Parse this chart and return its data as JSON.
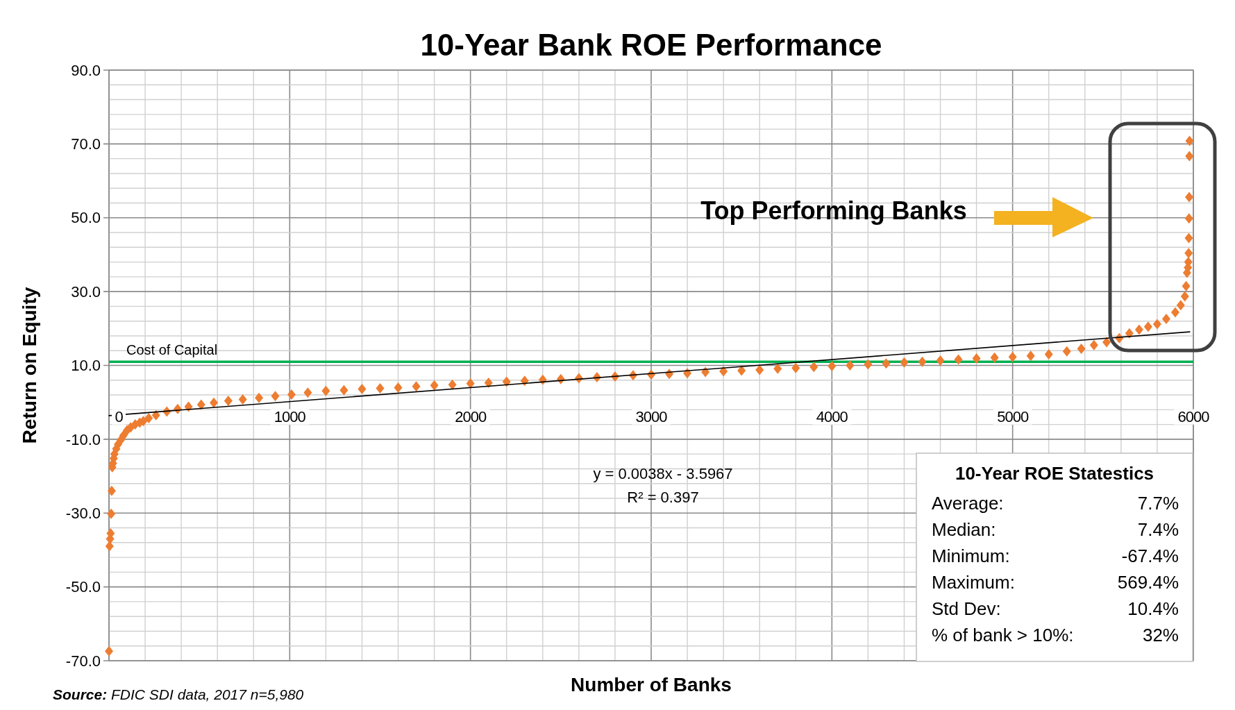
{
  "chart_data": {
    "type": "scatter",
    "title": "10-Year Bank ROE Performance",
    "xlabel": "Number of Banks",
    "ylabel": "Return on Equity",
    "xlim": [
      0,
      6000
    ],
    "ylim": [
      -70,
      90
    ],
    "xticks": [
      0,
      {
        "value": 200,
        "label": null
      },
      {
        "value": 400,
        "label": null
      },
      {
        "value": 600,
        "label": null
      },
      {
        "value": 800,
        "label": null
      },
      1000,
      {
        "value": 1200,
        "label": null
      },
      {
        "value": 1400,
        "label": null
      },
      {
        "value": 1600,
        "label": null
      },
      {
        "value": 1800,
        "label": null
      },
      2000,
      {
        "value": 2200,
        "label": null
      },
      {
        "value": 2400,
        "label": null
      },
      {
        "value": 2600,
        "label": null
      },
      {
        "value": 2800,
        "label": null
      },
      3000,
      {
        "value": 3200,
        "label": null
      },
      {
        "value": 3400,
        "label": null
      },
      {
        "value": 3600,
        "label": null
      },
      {
        "value": 3800,
        "label": null
      },
      4000,
      {
        "value": 4200,
        "label": null
      },
      {
        "value": 4400,
        "label": null
      },
      {
        "value": 4600,
        "label": null
      },
      {
        "value": 4800,
        "label": null
      },
      5000,
      {
        "value": 5200,
        "label": null
      },
      {
        "value": 5400,
        "label": null
      },
      {
        "value": 5600,
        "label": null
      },
      {
        "value": 5800,
        "label": null
      },
      6000
    ],
    "yticks": [
      {
        "value": -70,
        "label": "-70.0"
      },
      {
        "value": -66,
        "label": null
      },
      {
        "value": -62,
        "label": null
      },
      {
        "value": -58,
        "label": null
      },
      {
        "value": -54,
        "label": null
      },
      {
        "value": -50,
        "label": "-50.0"
      },
      {
        "value": -46,
        "label": null
      },
      {
        "value": -42,
        "label": null
      },
      {
        "value": -38,
        "label": null
      },
      {
        "value": -34,
        "label": null
      },
      {
        "value": -30,
        "label": "-30.0"
      },
      {
        "value": -26,
        "label": null
      },
      {
        "value": -22,
        "label": null
      },
      {
        "value": -18,
        "label": null
      },
      {
        "value": -14,
        "label": null
      },
      {
        "value": -10,
        "label": "-10.0"
      },
      {
        "value": -6,
        "label": null
      },
      {
        "value": -2,
        "label": null
      },
      {
        "value": 2,
        "label": null
      },
      {
        "value": 6,
        "label": null
      },
      {
        "value": 10,
        "label": "10.0"
      },
      {
        "value": 14,
        "label": null
      },
      {
        "value": 18,
        "label": null
      },
      {
        "value": 22,
        "label": null
      },
      {
        "value": 26,
        "label": null
      },
      {
        "value": 30,
        "label": "30.0"
      },
      {
        "value": 34,
        "label": null
      },
      {
        "value": 38,
        "label": null
      },
      {
        "value": 42,
        "label": null
      },
      {
        "value": 46,
        "label": null
      },
      {
        "value": 50,
        "label": "50.0"
      },
      {
        "value": 54,
        "label": null
      },
      {
        "value": 58,
        "label": null
      },
      {
        "value": 62,
        "label": null
      },
      {
        "value": 66,
        "label": null
      },
      {
        "value": 70,
        "label": "70.0"
      },
      {
        "value": 74,
        "label": null
      },
      {
        "value": 78,
        "label": null
      },
      {
        "value": 82,
        "label": null
      },
      {
        "value": 86,
        "label": null
      },
      {
        "value": 90,
        "label": "90.0"
      }
    ],
    "grid": true,
    "marker": "diamond",
    "series": [
      {
        "color": "#ed7d31",
        "x": [
          0,
          3,
          6,
          9,
          12,
          15,
          18,
          22,
          26,
          30,
          40,
          50,
          65,
          80,
          100,
          120,
          145,
          170,
          190,
          220,
          260,
          320,
          380,
          440,
          510,
          580,
          660,
          740,
          830,
          920,
          1010,
          1100,
          1200,
          1300,
          1400,
          1500,
          1600,
          1700,
          1800,
          1900,
          2000,
          2100,
          2200,
          2300,
          2400,
          2500,
          2600,
          2700,
          2800,
          2900,
          3000,
          3100,
          3200,
          3300,
          3400,
          3500,
          3600,
          3700,
          3800,
          3900,
          4000,
          4100,
          4200,
          4300,
          4400,
          4500,
          4600,
          4700,
          4800,
          4900,
          5000,
          5100,
          5200,
          5300,
          5380,
          5450,
          5520,
          5590,
          5646,
          5700,
          5750,
          5800,
          5850,
          5900,
          5930,
          5953,
          5960,
          5965,
          5970,
          5972,
          5974,
          5975,
          5976,
          5977,
          5978,
          5979
        ],
        "values": [
          -67.4,
          -39,
          -37,
          -35.5,
          -30.2,
          -24,
          -17.6,
          -16.5,
          -15.2,
          -14,
          -12.6,
          -11.4,
          -10.2,
          -9,
          -7.6,
          -6.8,
          -6,
          -5.5,
          -5.1,
          -4.3,
          -3.5,
          -2.5,
          -1.8,
          -1.2,
          -0.6,
          -0.1,
          0.4,
          0.8,
          1.2,
          1.7,
          2.1,
          2.6,
          3.1,
          3.3,
          3.6,
          3.8,
          4,
          4.3,
          4.6,
          4.8,
          5.1,
          5.3,
          5.6,
          5.8,
          6.1,
          6.3,
          6.5,
          6.8,
          7,
          7.3,
          7.5,
          7.7,
          7.9,
          8.2,
          8.4,
          8.6,
          8.8,
          9.1,
          9.3,
          9.6,
          9.8,
          10,
          10.3,
          10.5,
          10.8,
          11,
          11.3,
          11.6,
          11.9,
          12.1,
          12.3,
          12.6,
          13,
          13.8,
          14.5,
          15.5,
          16.3,
          17.4,
          18.7,
          19.7,
          20.5,
          21.2,
          22.6,
          24.4,
          26.3,
          28.7,
          31.5,
          35.1,
          36.5,
          38,
          40.4,
          44.5,
          49.8,
          55.6,
          66.7,
          70.8
        ]
      },
      {
        "type": "line",
        "color": "#000000",
        "marker": "none",
        "x": [
          0,
          5980
        ],
        "values": [
          -3.6,
          19.1
        ]
      }
    ],
    "ref_lines": [
      {
        "axis": "y",
        "value": 11,
        "label": "Cost of Capital",
        "color": "#00b050"
      }
    ],
    "annotations": [
      "Top Performing Banks",
      "y = 0.0038x - 3.5967",
      "R² = 0.397",
      "10-Year ROE Statestics",
      "Average:",
      "7.7%",
      "Median:",
      "7.4%",
      "Minimum:",
      "-67.4%",
      "Maximum:",
      "569.4%",
      "Std Dev:",
      "10.4%",
      "% of bank > 10%:",
      "32%",
      "Source: FDIC SDI data, 2017 n=5,980"
    ]
  }
}
